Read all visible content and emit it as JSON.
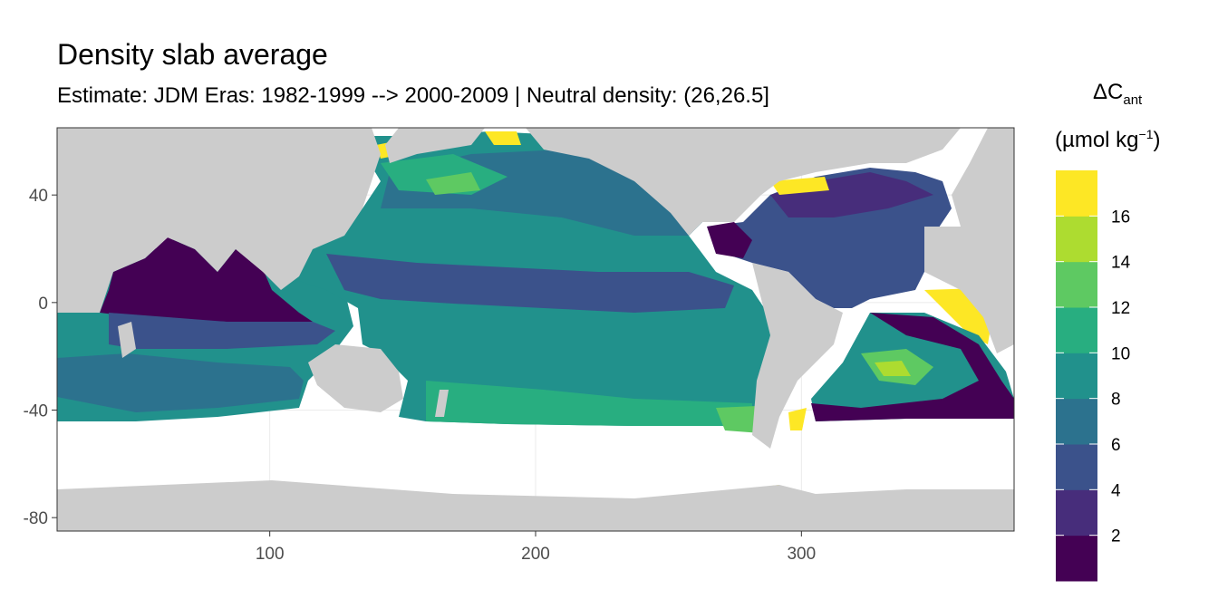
{
  "title": "Density slab average",
  "subtitle": "Estimate: JDM Eras: 1982-1999 --> 2000-2009 | Neutral density: (26,26.5]",
  "legend": {
    "symbol": "ΔC",
    "subscript": "ant",
    "unit_prefix": "(µmol kg",
    "unit_exponent": "−1",
    "unit_suffix": ")",
    "breaks": [
      "2",
      "4",
      "6",
      "8",
      "10",
      "12",
      "14",
      "16"
    ],
    "colors": [
      "#440154",
      "#472d7b",
      "#3b528b",
      "#2c728e",
      "#21918c",
      "#28ae80",
      "#5ec962",
      "#addc30",
      "#fde725"
    ]
  },
  "axes": {
    "x_ticks": [
      "100",
      "200",
      "300"
    ],
    "y_ticks": [
      "40",
      "0",
      "-40",
      "-80"
    ],
    "x_range": [
      20,
      380
    ],
    "y_range": [
      -85,
      65
    ]
  },
  "colors": {
    "land": "#cccccc",
    "no_data": "#ffffff",
    "panel_border": "#333333",
    "grid": "#ebebeb"
  }
}
